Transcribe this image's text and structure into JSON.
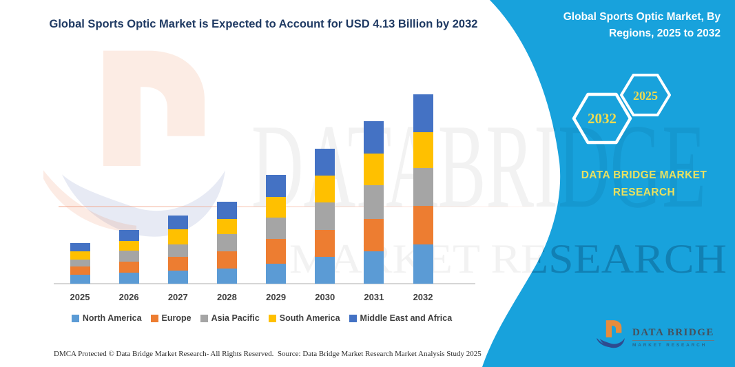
{
  "header": {
    "title": "Global Sports Optic Market is Expected to Account for USD 4.13 Billion by 2032"
  },
  "side_panel": {
    "title": "Global Sports Optic Market, By Regions, 2025 to 2032",
    "hexagon_left_year": "2032",
    "hexagon_right_year": "2025",
    "brand_line1": "DATA BRIDGE MARKET",
    "brand_line2": "RESEARCH",
    "background_color": "#18A2DC",
    "accent_text_color": "#EFDB4F"
  },
  "logo": {
    "brand": "DATA BRIDGE",
    "tagline": "MARKET RESEARCH"
  },
  "watermark": {
    "line1": "DATABRIDGE",
    "line2": "MARKET RESEARCH"
  },
  "footer": {
    "left": "DMCA Protected © Data Bridge Market Research-  All Rights Reserved.",
    "right": "Source: Data Bridge Market Research  Market Analysis Study 2025"
  },
  "chart_data": {
    "type": "bar",
    "stacked": true,
    "title": "Global Sports Optic Market is Expected to Account for USD 4.13 Billion by 2032",
    "unit": "USD Billion",
    "xlabel": "",
    "ylabel": "",
    "grid": false,
    "legend_position": "bottom",
    "ylim": [
      0,
      4.4
    ],
    "categories": [
      "2025",
      "2026",
      "2027",
      "2028",
      "2029",
      "2030",
      "2031",
      "2032"
    ],
    "series": [
      {
        "name": "North America",
        "color": "#5B9BD5",
        "values": [
          0.2,
          0.24,
          0.29,
          0.33,
          0.44,
          0.58,
          0.7,
          0.85
        ]
      },
      {
        "name": "Europe",
        "color": "#ED7D31",
        "values": [
          0.17,
          0.24,
          0.29,
          0.38,
          0.53,
          0.59,
          0.71,
          0.84
        ]
      },
      {
        "name": "Asia Pacific",
        "color": "#A5A5A5",
        "values": [
          0.15,
          0.24,
          0.27,
          0.37,
          0.47,
          0.6,
          0.73,
          0.83
        ]
      },
      {
        "name": "South America",
        "color": "#FFC000",
        "values": [
          0.18,
          0.21,
          0.33,
          0.33,
          0.45,
          0.59,
          0.7,
          0.79
        ]
      },
      {
        "name": "Middle East and Africa",
        "color": "#4472C4",
        "values": [
          0.18,
          0.24,
          0.3,
          0.38,
          0.48,
          0.58,
          0.7,
          0.82
        ]
      }
    ],
    "totals": [
      0.88,
      1.17,
      1.48,
      1.79,
      2.37,
      2.94,
      3.54,
      4.13
    ]
  }
}
